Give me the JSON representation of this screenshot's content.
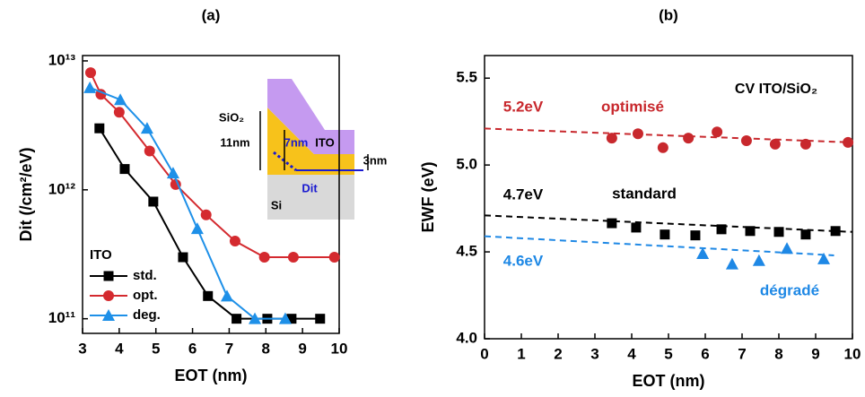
{
  "chart_data": [
    {
      "type": "line",
      "title": "(a)",
      "xlabel": "EOT (nm)",
      "ylabel": "Dit (/cm²/eV)",
      "log_y": true,
      "connect": true,
      "xlim": [
        3,
        10
      ],
      "xticks": [
        3,
        4,
        5,
        6,
        7,
        8,
        9,
        10
      ],
      "ylim": [
        77000000000,
        11000000000000
      ],
      "yticks": [
        {
          "value": 100000000000,
          "label": "10¹¹"
        },
        {
          "value": 1000000000000,
          "label": "10¹²"
        },
        {
          "value": 10000000000000,
          "label": "10¹³"
        }
      ],
      "legend_title": "ITO",
      "legend": "lower left",
      "series": [
        {
          "name": "std.",
          "color": "#000000",
          "marker": "square",
          "x": [
            3.46,
            4.15,
            4.93,
            5.74,
            6.42,
            7.2,
            8.04,
            8.7,
            9.48
          ],
          "values": [
            3000000000000,
            1450000000000,
            810000000000,
            300000000000,
            150000000000,
            100000000000,
            100000000000,
            100000000000,
            100000000000
          ]
        },
        {
          "name": "opt.",
          "color": "#d42a2f",
          "marker": "circle",
          "x": [
            3.22,
            3.5,
            4.0,
            4.83,
            5.54,
            6.37,
            7.16,
            7.96,
            8.75,
            9.87
          ],
          "values": [
            8100000000000,
            5500000000000,
            4000000000000,
            2000000000000,
            1100000000000,
            640000000000,
            400000000000,
            300000000000,
            300000000000,
            300000000000
          ]
        },
        {
          "name": "deg.",
          "color": "#1e90e8",
          "marker": "triangle",
          "x": [
            3.2,
            4.03,
            4.76,
            5.47,
            6.13,
            6.94,
            7.7,
            8.53
          ],
          "values": [
            6200000000000,
            5000000000000,
            3000000000000,
            1350000000000,
            500000000000,
            150000000000,
            100000000000,
            100000000000
          ]
        }
      ],
      "annotations": [
        "SiO₂",
        "11nm",
        "7nm",
        "ITO",
        "3nm",
        "Dit",
        "Si"
      ]
    },
    {
      "type": "scatter",
      "title": "(b)",
      "xlabel": "EOT (nm)",
      "ylabel": "EWF (eV)",
      "log_y": false,
      "connect": false,
      "xlim": [
        0,
        10
      ],
      "xticks": [
        0,
        1,
        2,
        3,
        4,
        5,
        6,
        7,
        8,
        9,
        10
      ],
      "ylim": [
        4.0,
        5.63
      ],
      "yticks": [
        {
          "value": 4,
          "label": "4.0"
        },
        4.5,
        {
          "value": 5,
          "label": "5.0"
        },
        5.5
      ],
      "series": [
        {
          "name": "optimisé",
          "color": "#c8282d",
          "marker": "circle",
          "intercept_label": "5.2eV",
          "x": [
            3.46,
            4.17,
            4.85,
            5.54,
            6.32,
            7.12,
            7.9,
            8.73,
            9.88
          ],
          "values": [
            5.155,
            5.18,
            5.1,
            5.155,
            5.19,
            5.14,
            5.12,
            5.12,
            5.13
          ],
          "fit": {
            "x": [
              0,
              10
            ],
            "values": [
              5.21,
              5.13
            ]
          }
        },
        {
          "name": "standard",
          "color": "#000000",
          "marker": "square",
          "intercept_label": "4.7eV",
          "x": [
            3.46,
            4.12,
            4.9,
            5.73,
            6.44,
            7.22,
            8.0,
            8.73,
            9.54
          ],
          "values": [
            4.665,
            4.64,
            4.6,
            4.595,
            4.63,
            4.62,
            4.615,
            4.6,
            4.62
          ],
          "fit": {
            "x": [
              0,
              10
            ],
            "values": [
              4.71,
              4.615
            ]
          }
        },
        {
          "name": "dégradé",
          "color": "#1e88e5",
          "marker": "triangle",
          "intercept_label": "4.6eV",
          "x": [
            5.93,
            6.73,
            7.46,
            8.22,
            9.22
          ],
          "values": [
            4.49,
            4.43,
            4.45,
            4.52,
            4.46
          ],
          "fit": {
            "x": [
              0,
              9.5
            ],
            "values": [
              4.59,
              4.48
            ]
          }
        }
      ],
      "annotations": [
        "CV ITO/SiO₂"
      ]
    }
  ]
}
